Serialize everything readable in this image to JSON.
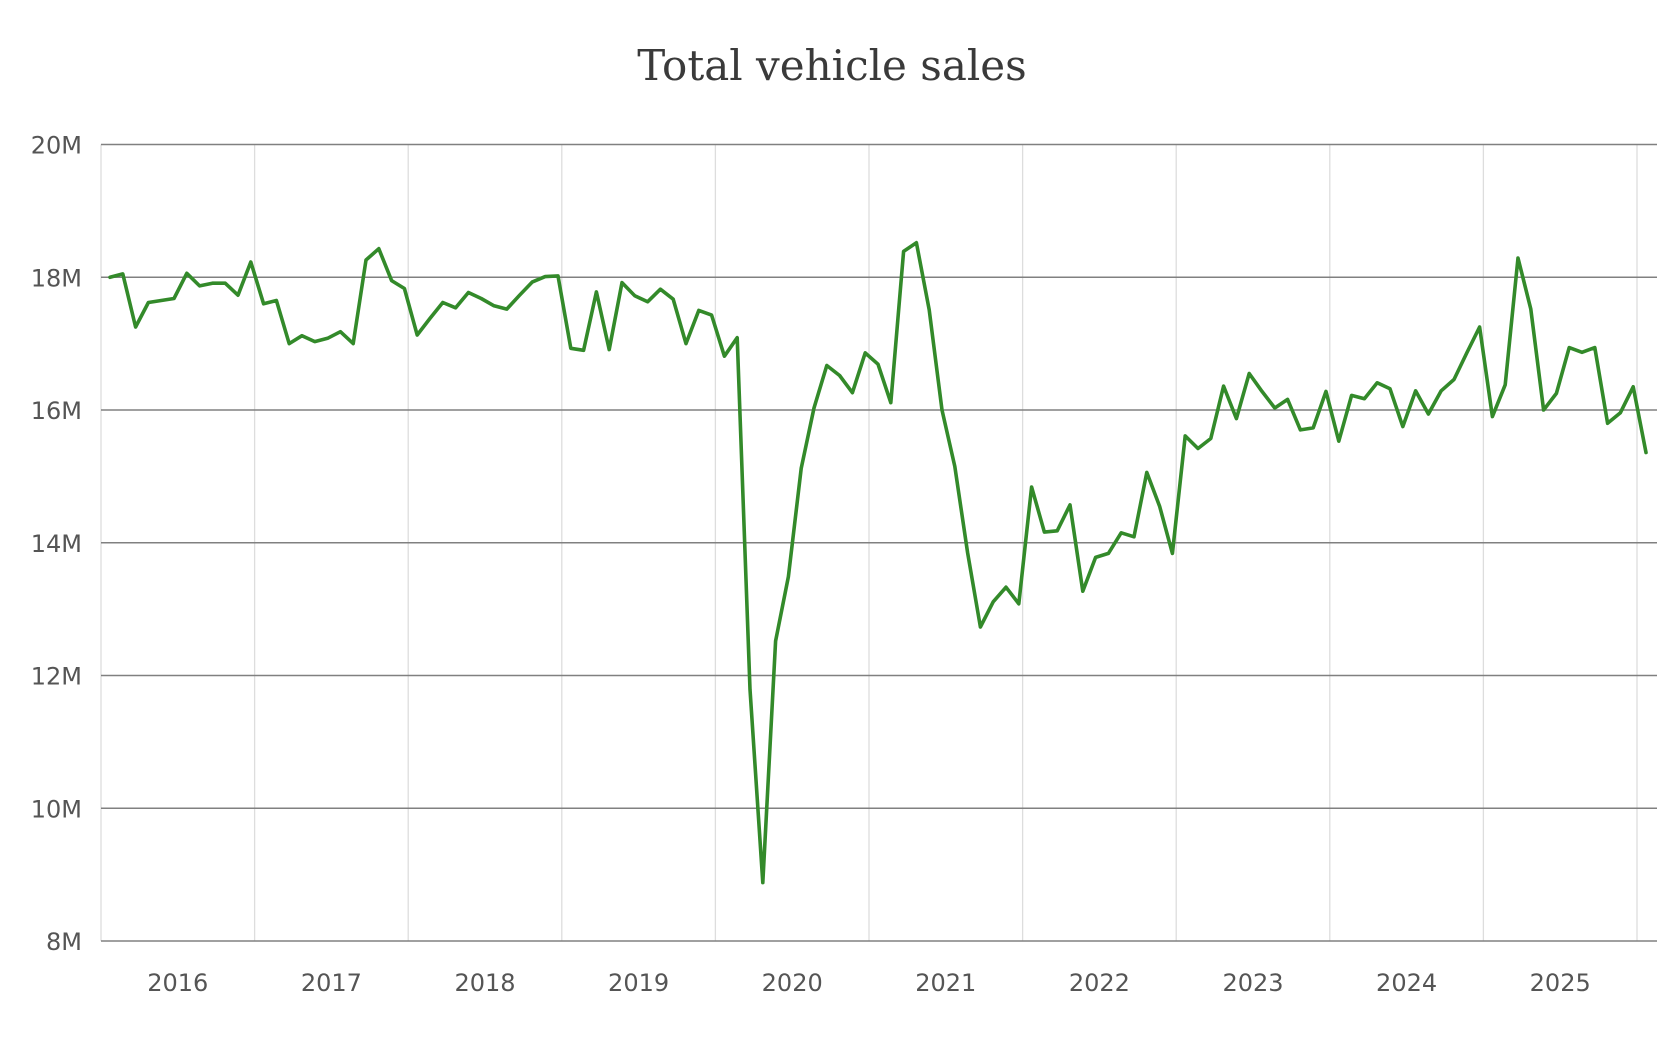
{
  "chart_data": {
    "type": "line",
    "title": "Total vehicle sales",
    "xlabel": "",
    "ylabel": "",
    "x_start": "2016-01",
    "x_frequency": "monthly",
    "x_tick_labels": [
      "2016",
      "2017",
      "2018",
      "2019",
      "2020",
      "2021",
      "2022",
      "2023",
      "2024",
      "2025"
    ],
    "y_ticks": [
      8,
      10,
      12,
      14,
      16,
      18,
      20
    ],
    "y_tick_labels": [
      "8M",
      "10M",
      "12M",
      "14M",
      "16M",
      "18M",
      "20M"
    ],
    "ylim": [
      8,
      20
    ],
    "y_unit": "millions",
    "grid": {
      "horizontal": true,
      "vertical": true
    },
    "legend": "none",
    "colors": {
      "line": "#338a2a",
      "hgrid": "#808080",
      "vgrid": "#dddddd"
    },
    "series": [
      {
        "values": [
          18.0,
          18.05,
          17.25,
          17.62,
          17.65,
          17.68,
          18.06,
          17.87,
          17.91,
          17.91,
          17.73,
          18.23,
          17.6,
          17.65,
          17.0,
          17.12,
          17.03,
          17.08,
          17.18,
          17.0,
          18.26,
          18.43,
          17.95,
          17.83,
          17.13,
          17.38,
          17.62,
          17.54,
          17.77,
          17.68,
          17.57,
          17.52,
          17.73,
          17.93,
          18.01,
          18.02,
          16.93,
          16.9,
          17.78,
          16.91,
          17.92,
          17.72,
          17.63,
          17.82,
          17.67,
          17.0,
          17.5,
          17.43,
          16.81,
          17.09,
          11.79,
          8.88,
          12.52,
          13.49,
          15.12,
          16.03,
          16.67,
          16.52,
          16.26,
          16.86,
          16.69,
          16.11,
          18.39,
          18.52,
          17.51,
          16.0,
          15.15,
          13.85,
          12.73,
          13.11,
          13.33,
          13.08,
          14.84,
          14.16,
          14.18,
          14.57,
          13.27,
          13.78,
          13.84,
          14.15,
          14.09,
          15.06,
          14.55,
          13.84,
          15.61,
          15.42,
          15.57,
          16.36,
          15.87,
          16.55,
          16.28,
          16.03,
          16.16,
          15.7,
          15.73,
          16.28,
          15.53,
          16.22,
          16.17,
          16.41,
          16.32,
          15.75,
          16.29,
          15.94,
          16.29,
          16.46,
          16.86,
          17.25,
          15.9,
          16.38,
          18.29,
          17.52,
          16.0,
          16.25,
          16.94,
          16.87,
          16.94,
          15.8,
          15.96,
          16.35,
          15.36
        ]
      }
    ]
  }
}
